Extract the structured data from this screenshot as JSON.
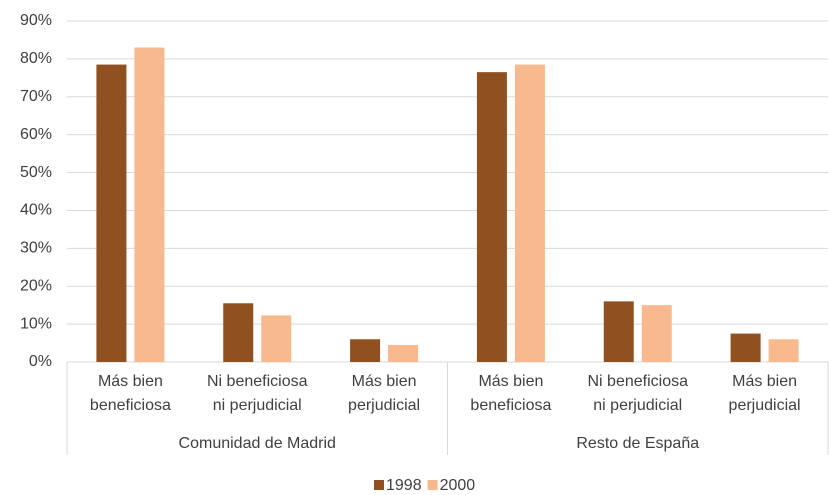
{
  "chart_data": {
    "type": "bar",
    "categories": [
      "Más bien\nbeneficiosa",
      "Ni beneficiosa\nni perjudicial",
      "Más bien\nperjudicial",
      "Más bien\nbeneficiosa",
      "Ni beneficiosa\nni perjudicial",
      "Más bien\nperjudicial"
    ],
    "groups": [
      "Comunidad de Madrid",
      "Resto de España"
    ],
    "series": [
      {
        "name": "1998",
        "color": "#91501f",
        "values": [
          78.5,
          15.5,
          6,
          76.5,
          16,
          7.5
        ]
      },
      {
        "name": "2000",
        "color": "#f8b98e",
        "values": [
          83,
          12.3,
          4.5,
          78.5,
          15,
          6
        ]
      }
    ],
    "ylim": [
      0,
      90
    ],
    "yticks": [
      {
        "value": 0,
        "label": "0%"
      },
      {
        "value": 10,
        "label": "10%"
      },
      {
        "value": 20,
        "label": "20%"
      },
      {
        "value": 30,
        "label": "30%"
      },
      {
        "value": 40,
        "label": "40%"
      },
      {
        "value": 50,
        "label": "50%"
      },
      {
        "value": 60,
        "label": "60%"
      },
      {
        "value": 70,
        "label": "70%"
      },
      {
        "value": 80,
        "label": "80%"
      },
      {
        "value": 90,
        "label": "90%"
      }
    ],
    "grid": true,
    "legend": "bottom"
  }
}
